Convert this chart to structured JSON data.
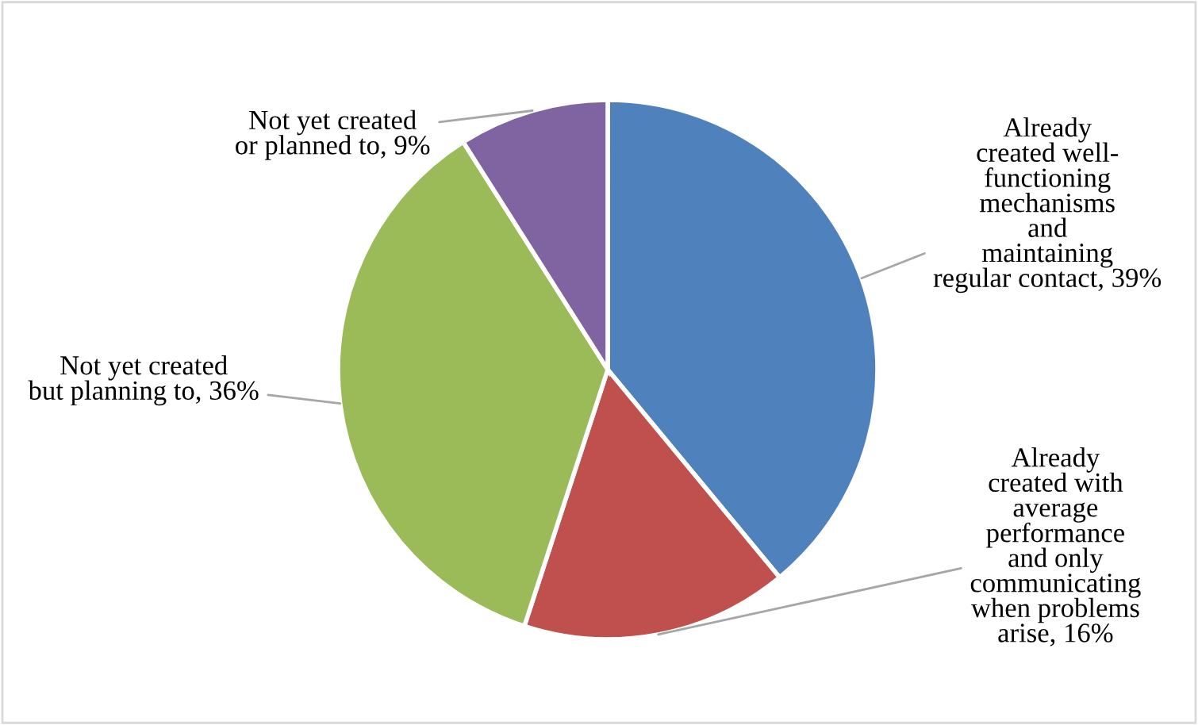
{
  "chart_data": {
    "type": "pie",
    "categories": [
      "Already\ncreated well-\nfunctioning\nmechanisms\nand\nmaintaining\nregular contact",
      "Already\ncreated with\naverage\nperformance\nand only\ncommunicating\nwhen problems\narise",
      "Not yet created\nbut planning to",
      "Not yet created\nor planned to"
    ],
    "values": [
      39,
      16,
      36,
      9
    ],
    "value_labels": [
      "39%",
      "16%",
      "36%",
      "9%"
    ],
    "colors": [
      "#4f81bd",
      "#c0504d",
      "#9bbb59",
      "#8064a2"
    ],
    "legend": false
  }
}
